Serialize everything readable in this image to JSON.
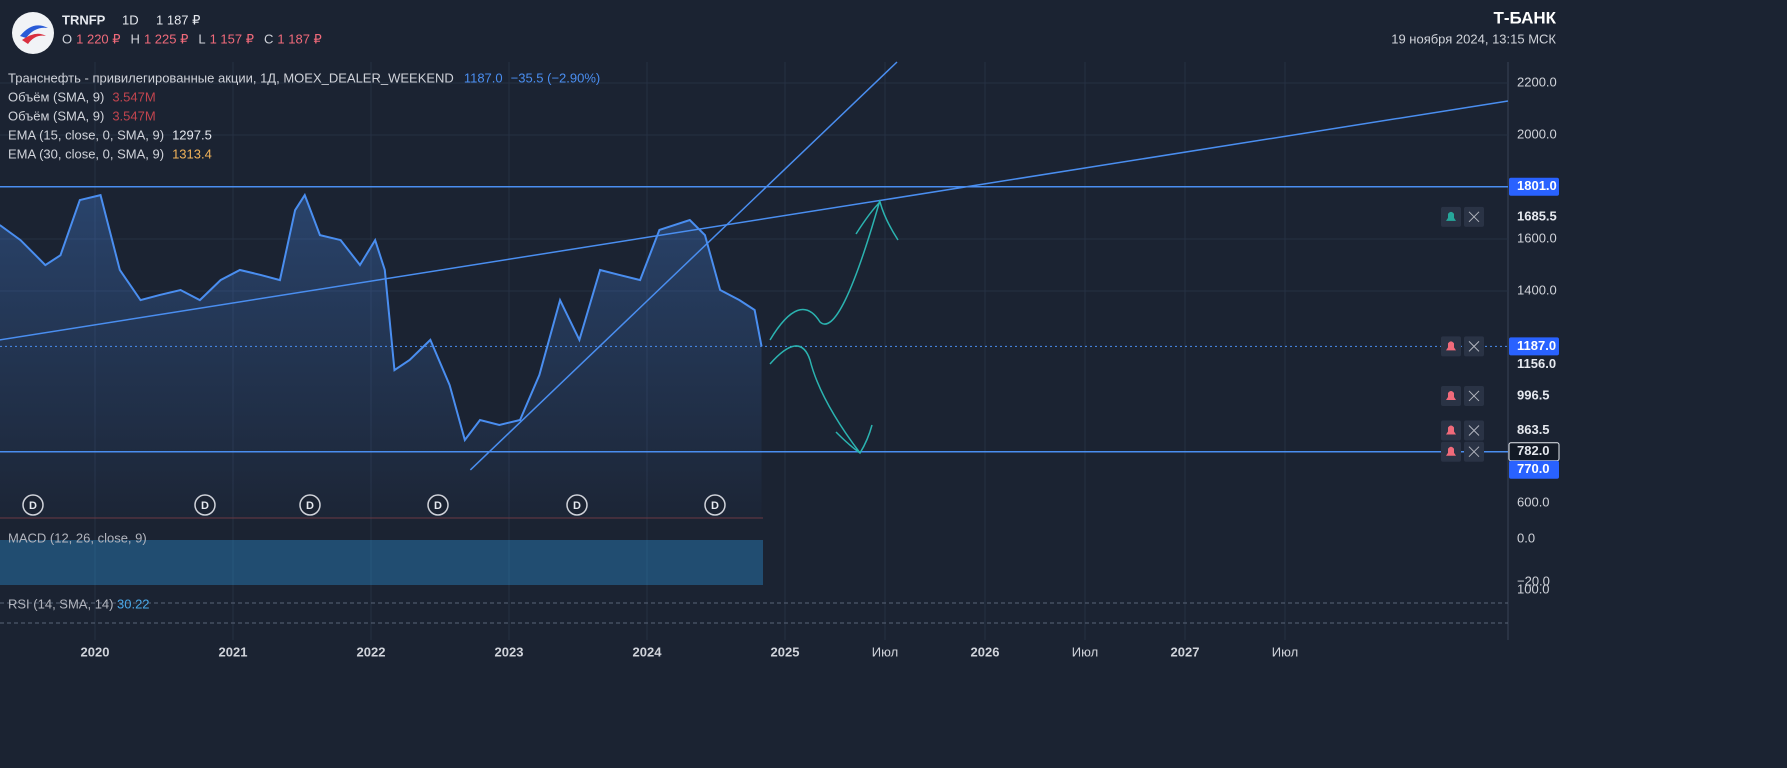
{
  "header": {
    "ticker": "TRNFP",
    "interval": "1D",
    "price": "1 187 ₽",
    "ohlc": [
      {
        "key": "O",
        "value": "1 220 ₽"
      },
      {
        "key": "H",
        "value": "1 225 ₽"
      },
      {
        "key": "L",
        "value": "1 157 ₽"
      },
      {
        "key": "C",
        "value": "1 187 ₽"
      }
    ],
    "brand": "Т‑БАНК",
    "datetime": "19 ноября 2024, 13:15 МСК"
  },
  "legend": {
    "main": {
      "name": "Транснефть - привилегированные акции, 1Д, MOEX_DEALER_WEEKEND",
      "value": "1187.0",
      "change": "−35.5 (−2.90%)"
    },
    "indicators": [
      {
        "name": "Объём (SMA, 9)",
        "value": "3.547M",
        "color": "#c2454f"
      },
      {
        "name": "Объём (SMA, 9)",
        "value": "3.547M",
        "color": "#c2454f"
      },
      {
        "name": "EMA (15, close, 0, SMA, 9)",
        "value": "1297.5",
        "color": "#e6e9ef"
      },
      {
        "name": "EMA (30, close, 0, SMA, 9)",
        "value": "1313.4",
        "color": "#f2b35a"
      }
    ],
    "macd": "MACD (12, 26, close, 9)",
    "rsi": {
      "name": "RSI (14, SMA, 14)",
      "value": "30.22"
    }
  },
  "dividend_marker": "D",
  "pane_axis_labels": [
    "600.0",
    "0.0",
    "−20.0",
    "100.0"
  ],
  "chart_data": {
    "type": "line",
    "series": [
      {
        "name": "TRNFP",
        "color": "#4a8ef0",
        "x": [
          2019.31,
          2019.46,
          2019.64,
          2019.75,
          2019.89,
          2020.04,
          2020.18,
          2020.33,
          2020.47,
          2020.62,
          2020.76,
          2020.91,
          2021.05,
          2021.2,
          2021.34,
          2021.45,
          2021.52,
          2021.63,
          2021.78,
          2021.92,
          2022.03,
          2022.1,
          2022.17,
          2022.28,
          2022.43,
          2022.57,
          2022.68,
          2022.79,
          2022.93,
          2023.08,
          2023.22,
          2023.37,
          2023.51,
          2023.66,
          2023.8,
          2023.95,
          2024.09,
          2024.31,
          2024.42,
          2024.53,
          2024.67,
          2024.78,
          2024.83
        ],
        "values": [
          1654,
          1596,
          1500,
          1538,
          1750,
          1769,
          1481,
          1365,
          1385,
          1404,
          1365,
          1442,
          1481,
          1462,
          1442,
          1711,
          1769,
          1615,
          1596,
          1500,
          1596,
          1481,
          1096,
          1135,
          1212,
          1038,
          827,
          904,
          885,
          904,
          1077,
          1365,
          1212,
          1481,
          1462,
          1442,
          1635,
          1673,
          1615,
          1404,
          1365,
          1327,
          1187
        ]
      }
    ],
    "trendlines": [
      {
        "x": [
          2019.31,
          2028.615
        ],
        "y": [
          1212,
          2131
        ]
      },
      {
        "x": [
          2022.72,
          2025.56
        ],
        "y": [
          712,
          2281
        ]
      }
    ],
    "levels": [
      {
        "value": 1801,
        "label": "1801.0",
        "line": "solid",
        "box": "blue"
      },
      {
        "value": 1685.5,
        "label": "1685.5",
        "alert": "green"
      },
      {
        "value": 1187,
        "label": "1187.0",
        "line": "dotted",
        "box": "blue",
        "alert": "red"
      },
      {
        "value": 1156,
        "label": "1156.0"
      },
      {
        "value": 996.5,
        "label": "996.5",
        "alert": "red"
      },
      {
        "value": 863.5,
        "label": "863.5",
        "alert": "red"
      },
      {
        "value": 782,
        "label": "782.0",
        "line": "solid",
        "box": "outline",
        "alert": "red"
      },
      {
        "value": 770,
        "label": "770.0",
        "box": "blue"
      }
    ],
    "ylim": [
      527,
      2281
    ],
    "yticks": [
      {
        "value": 2200,
        "label": "2200.0"
      },
      {
        "value": 2000,
        "label": "2000.0"
      },
      {
        "value": 1600,
        "label": "1600.0"
      },
      {
        "value": 1400,
        "label": "1400.0"
      }
    ],
    "xticks": [
      2020,
      2021,
      2022,
      2023,
      2024,
      2025,
      {
        "value": 2025.5,
        "label": "Июл"
      },
      2026,
      {
        "value": 2026.5,
        "label": "Июл"
      },
      2027,
      {
        "value": 2027.5,
        "label": "Июл"
      }
    ],
    "grid": true
  }
}
